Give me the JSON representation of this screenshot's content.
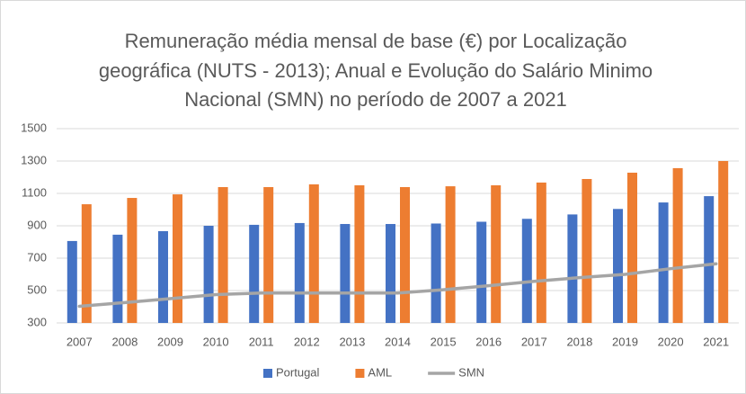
{
  "chart_data": {
    "type": "bar",
    "title": [
      "Remuneração média mensal de base (€) por Localização",
      "geográfica (NUTS - 2013); Anual e Evolução do Salário Minimo",
      "Nacional (SMN) no período de 2007 a 2021"
    ],
    "categories": [
      "2007",
      "2008",
      "2009",
      "2010",
      "2011",
      "2012",
      "2013",
      "2014",
      "2015",
      "2016",
      "2017",
      "2018",
      "2019",
      "2020",
      "2021"
    ],
    "series": [
      {
        "name": "Portugal",
        "type": "bar",
        "color": "#4472c4",
        "values": [
          806,
          845,
          867,
          900,
          906,
          917,
          911,
          911,
          914,
          925,
          943,
          970,
          1004,
          1044,
          1083
        ]
      },
      {
        "name": "AML",
        "type": "bar",
        "color": "#ed7d31",
        "values": [
          1033,
          1072,
          1094,
          1139,
          1139,
          1156,
          1150,
          1139,
          1144,
          1150,
          1167,
          1189,
          1228,
          1256,
          1300
        ]
      },
      {
        "name": "SMN",
        "type": "line",
        "color": "#a5a5a5",
        "values": [
          403,
          426,
          450,
          475,
          485,
          485,
          485,
          485,
          505,
          530,
          557,
          580,
          600,
          635,
          665
        ]
      }
    ],
    "ylim": [
      300,
      1500
    ],
    "yticks": [
      300,
      500,
      700,
      900,
      1100,
      1300,
      1500
    ],
    "grid": true,
    "legend": "bottom"
  }
}
